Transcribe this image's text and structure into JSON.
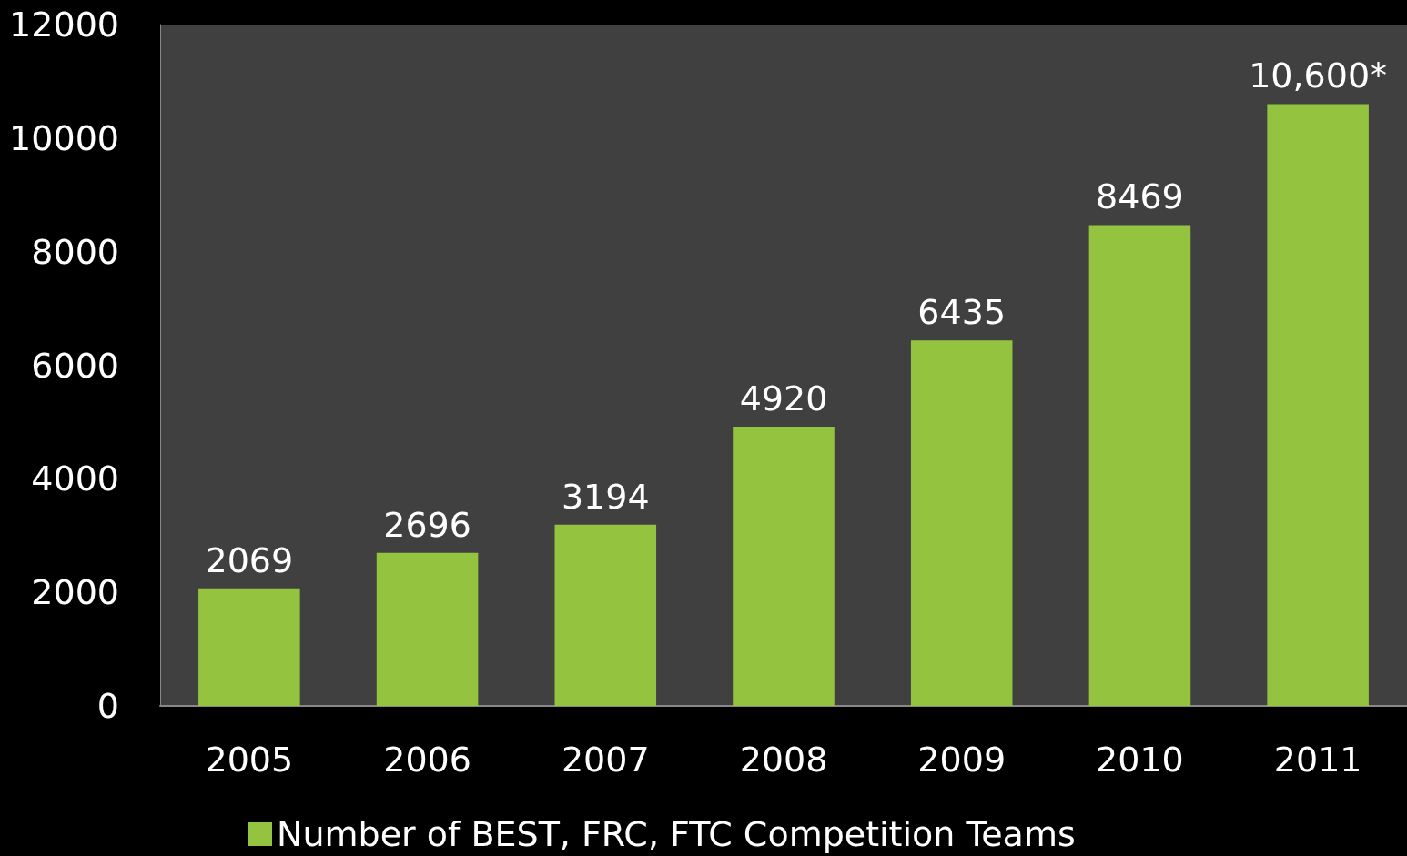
{
  "chart_data": {
    "type": "bar",
    "categories": [
      "2005",
      "2006",
      "2007",
      "2008",
      "2009",
      "2010",
      "2011"
    ],
    "series": [
      {
        "name": "Number of BEST, FRC, FTC Competition Teams",
        "color": "#94c43f",
        "values": [
          2069,
          2696,
          3194,
          4920,
          6435,
          8469,
          10600
        ],
        "value_labels": [
          "2069",
          "2696",
          "3194",
          "4920",
          "6435",
          "8469",
          "10,600*"
        ]
      }
    ],
    "ylim": [
      0,
      12000
    ],
    "yticks": [
      0,
      2000,
      4000,
      6000,
      8000,
      10000,
      12000
    ],
    "grid": false,
    "legend": "bottom"
  }
}
